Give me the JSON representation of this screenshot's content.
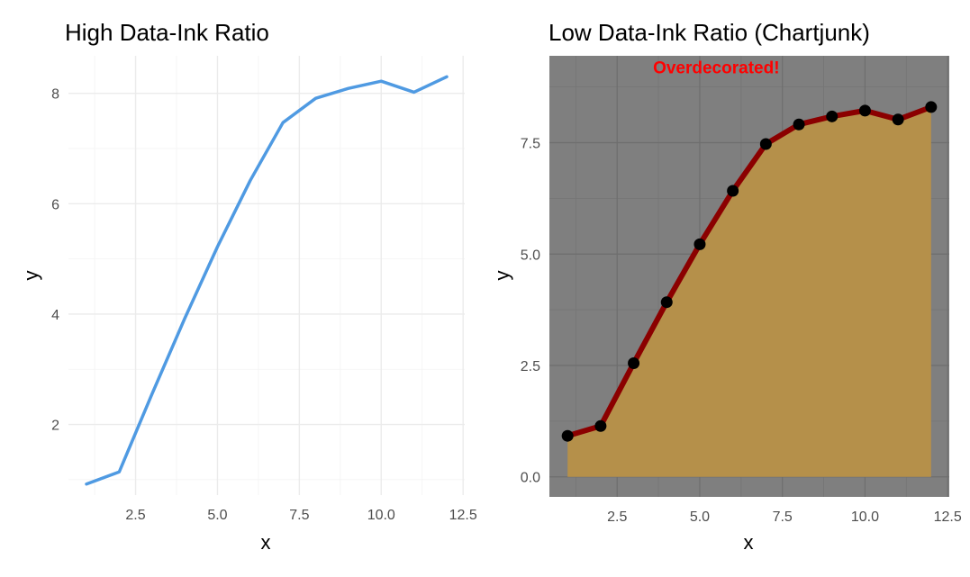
{
  "chart_data": [
    {
      "type": "line",
      "title": "High Data-Ink Ratio",
      "xlabel": "x",
      "ylabel": "y",
      "x": [
        1,
        2,
        3,
        4,
        5,
        6,
        7,
        8,
        9,
        10,
        11,
        12
      ],
      "series": [
        {
          "values": [
            0.92,
            1.14,
            2.55,
            3.92,
            5.22,
            6.42,
            7.47,
            7.91,
            8.09,
            8.22,
            8.02,
            8.3
          ]
        }
      ],
      "xlim": [
        0.45,
        12.55
      ],
      "ylim": [
        0.72,
        8.68
      ],
      "xticks": [
        2.5,
        5.0,
        7.5,
        10.0,
        12.5
      ],
      "xtick_labels": [
        "2.5",
        "5.0",
        "7.5",
        "10.0",
        "12.5"
      ],
      "yticks": [
        2,
        4,
        6,
        8
      ],
      "ytick_labels": [
        "2",
        "4",
        "6",
        "8"
      ],
      "grid": true,
      "colors": {
        "line": "#4f9ae2",
        "grid": "#ebebeb",
        "panel": "#ffffff"
      }
    },
    {
      "type": "area",
      "title": "Low Data-Ink Ratio (Chartjunk)",
      "xlabel": "x",
      "ylabel": "y",
      "annotation": "Overdecorated!",
      "x": [
        1,
        2,
        3,
        4,
        5,
        6,
        7,
        8,
        9,
        10,
        11,
        12
      ],
      "series": [
        {
          "values": [
            0.92,
            1.14,
            2.55,
            3.92,
            5.22,
            6.42,
            7.47,
            7.91,
            8.09,
            8.22,
            8.02,
            8.3
          ]
        }
      ],
      "xlim": [
        0.45,
        12.55
      ],
      "ylim": [
        -0.45,
        9.45
      ],
      "annotation_position": {
        "x": 5.5,
        "y": 9.2
      },
      "xticks": [
        2.5,
        5.0,
        7.5,
        10.0,
        12.5
      ],
      "xtick_labels": [
        "2.5",
        "5.0",
        "7.5",
        "10.0",
        "12.5"
      ],
      "yticks": [
        0.0,
        2.5,
        5.0,
        7.5
      ],
      "ytick_labels": [
        "0.0",
        "2.5",
        "5.0",
        "7.5"
      ],
      "grid": true,
      "colors": {
        "panel": "#7f7f7f",
        "grid": "#6e6e6e",
        "fill": "#b5904a",
        "line": "#8b0000",
        "points": "#000000",
        "annotation": "#ff0000"
      }
    }
  ]
}
